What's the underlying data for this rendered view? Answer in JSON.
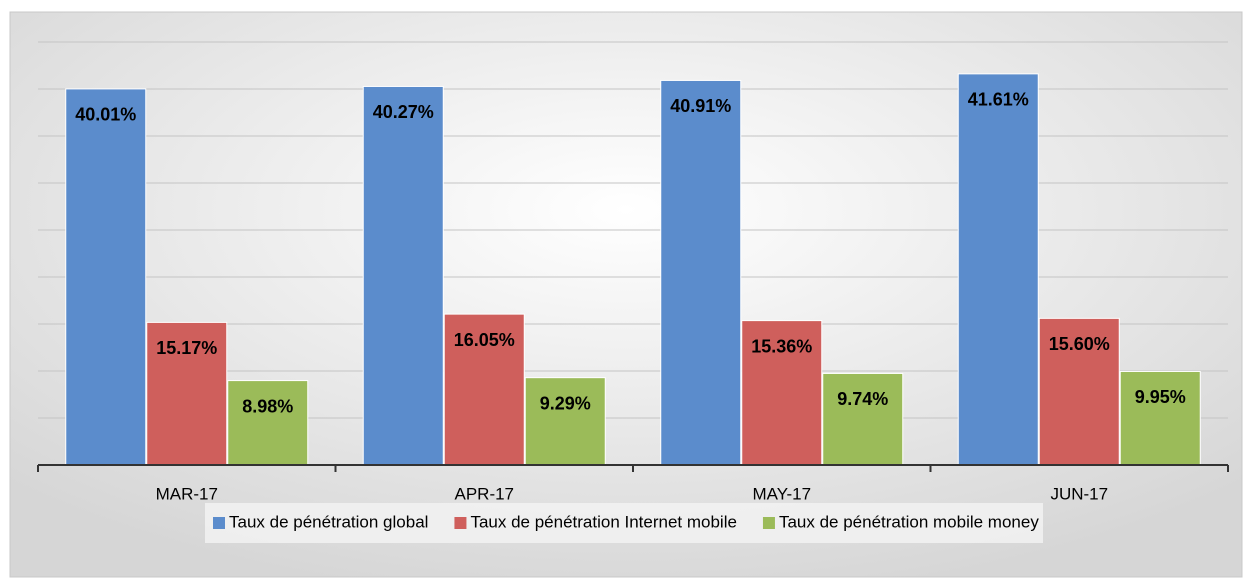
{
  "chart_data": {
    "type": "bar",
    "categories": [
      "MAR-17",
      "APR-17",
      "MAY-17",
      "JUN-17"
    ],
    "series": [
      {
        "name": "Taux de pénétration global",
        "color": "#5b8ccc",
        "values": [
          40.01,
          40.27,
          40.91,
          41.61
        ],
        "value_labels": [
          "40.01%",
          "40.27%",
          "40.91%",
          "41.61%"
        ]
      },
      {
        "name": "Taux de pénétration Internet mobile",
        "color": "#cf5f5c",
        "values": [
          15.17,
          16.05,
          15.36,
          15.6
        ],
        "value_labels": [
          "15.17%",
          "16.05%",
          "15.36%",
          "15.60%"
        ]
      },
      {
        "name": "Taux de pénétration mobile money",
        "color": "#9bbb59",
        "values": [
          8.98,
          9.29,
          9.74,
          9.95
        ],
        "value_labels": [
          "8.98%",
          "9.29%",
          "9.74%",
          "9.95%"
        ]
      }
    ],
    "ylim": [
      0,
      45
    ],
    "yticks": [
      0,
      5,
      10,
      15,
      20,
      25,
      30,
      35,
      40,
      45
    ],
    "grid": true,
    "legend": "bottom"
  }
}
